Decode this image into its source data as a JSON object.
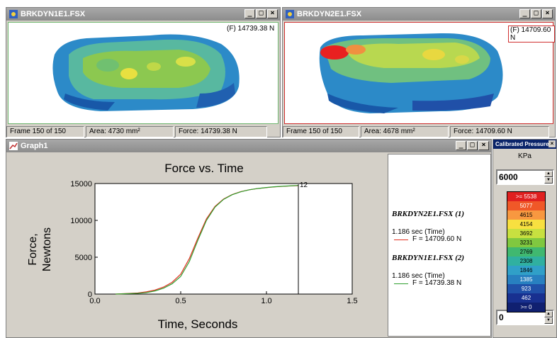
{
  "window1": {
    "title": "BRKDYN1E1.FSX",
    "force_label": "(F) 14739.38 N",
    "status": {
      "frame": "Frame 150 of 150",
      "area": "Area: 4730 mm²",
      "force": "Force: 14739.38 N"
    }
  },
  "window2": {
    "title": "BRKDYN2E1.FSX",
    "force_label": "(F) 14709.60 N",
    "status": {
      "frame": "Frame 150 of 150",
      "area": "Area: 4678 mm²",
      "force": "Force: 14709.60 N"
    }
  },
  "graph_window": {
    "title": "Graph1"
  },
  "title_buttons": {
    "minimize": "_",
    "maximize": "□",
    "close": "×"
  },
  "chart_data": {
    "type": "line",
    "title": "Force vs. Time",
    "xlabel": "Time, Seconds",
    "ylabel_line1": "Force,",
    "ylabel_line2": "Newtons",
    "xlim": [
      0.0,
      1.5
    ],
    "ylim": [
      0,
      15000
    ],
    "x_ticks": [
      "0.0",
      "0.5",
      "1.0",
      "1.5"
    ],
    "y_ticks": [
      "0",
      "5000",
      "10000",
      "15000"
    ],
    "cursor_label": "12",
    "cursor_x": 1.186,
    "series": [
      {
        "name": "BRKDYN2E1.FSX (1)",
        "color": "#e03020",
        "x": [
          0.12,
          0.25,
          0.3,
          0.35,
          0.4,
          0.45,
          0.5,
          0.55,
          0.6,
          0.65,
          0.7,
          0.75,
          0.8,
          0.85,
          0.9,
          0.95,
          1.0,
          1.05,
          1.1,
          1.15,
          1.186
        ],
        "y": [
          0,
          150,
          300,
          550,
          950,
          1600,
          2700,
          4800,
          7600,
          10200,
          11900,
          12900,
          13500,
          13900,
          14150,
          14320,
          14450,
          14550,
          14620,
          14680,
          14709.6
        ]
      },
      {
        "name": "BRKDYN1E1.FSX (2)",
        "color": "#30a030",
        "x": [
          0.12,
          0.25,
          0.3,
          0.35,
          0.4,
          0.45,
          0.5,
          0.55,
          0.6,
          0.65,
          0.7,
          0.75,
          0.8,
          0.85,
          0.9,
          0.95,
          1.0,
          1.05,
          1.1,
          1.15,
          1.186
        ],
        "y": [
          0,
          100,
          200,
          420,
          800,
          1400,
          2400,
          4400,
          7300,
          10000,
          11800,
          12850,
          13480,
          13880,
          14150,
          14330,
          14460,
          14570,
          14640,
          14700,
          14739.38
        ]
      }
    ]
  },
  "legend": {
    "entry1": {
      "title": "BRKDYN2E1.FSX (1)",
      "time": "1.186 sec (Time)",
      "value": "F = 14709.60 N"
    },
    "entry2": {
      "title": "BRKDYN1E1.FSX (2)",
      "time": "1.186 sec (Time)",
      "value": "F = 14739.38 N"
    }
  },
  "pressure_panel": {
    "title": "Calibrated Pressure",
    "unit": "KPa",
    "max_value": "6000",
    "min_value": "0",
    "scale": [
      {
        "label": ">= 5538",
        "color": "#e02020"
      },
      {
        "label": "5077",
        "color": "#f05828"
      },
      {
        "label": "4615",
        "color": "#f89840"
      },
      {
        "label": "4154",
        "color": "#f8e040"
      },
      {
        "label": "3692",
        "color": "#c8e040"
      },
      {
        "label": "3231",
        "color": "#80c840"
      },
      {
        "label": "2769",
        "color": "#40b870"
      },
      {
        "label": "2308",
        "color": "#30b0a0"
      },
      {
        "label": "1846",
        "color": "#30a0c8"
      },
      {
        "label": "1385",
        "color": "#2880c0"
      },
      {
        "label": "923",
        "color": "#2050a8"
      },
      {
        "label": "462",
        "color": "#183090"
      },
      {
        "label": ">= 0",
        "color": "#102070"
      }
    ]
  }
}
